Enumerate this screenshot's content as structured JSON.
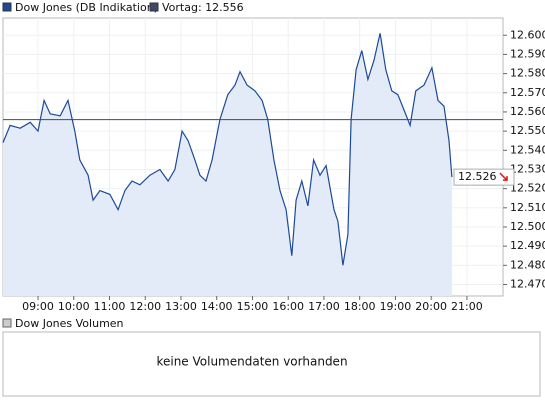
{
  "chart_data": {
    "type": "line",
    "series": [
      {
        "name": "Dow Jones (DB Indikation)",
        "color": "#1c4a96",
        "x": [
          8.02,
          8.22,
          8.5,
          8.78,
          9.0,
          9.17,
          9.34,
          9.62,
          9.84,
          10.03,
          10.17,
          10.4,
          10.54,
          10.73,
          11.01,
          11.24,
          11.43,
          11.63,
          11.85,
          12.13,
          12.41,
          12.64,
          12.83,
          13.03,
          13.2,
          13.39,
          13.53,
          13.7,
          13.87,
          14.09,
          14.31,
          14.51,
          14.65,
          14.85,
          15.07,
          15.27,
          15.43,
          15.6,
          15.77,
          15.94,
          16.1,
          16.22,
          16.38,
          16.55,
          16.71,
          16.89,
          17.06,
          17.28,
          17.39,
          17.53,
          17.67,
          17.76,
          17.9,
          18.06,
          18.23,
          18.4,
          18.57,
          18.73,
          18.9,
          19.07,
          19.24,
          19.41,
          19.57,
          19.8,
          20.02,
          20.19,
          20.36,
          20.5,
          20.58
        ],
        "values": [
          12544,
          12553,
          12551.5,
          12554.6,
          12550,
          12566,
          12559,
          12558,
          12566,
          12550,
          12535,
          12527,
          12514,
          12519,
          12517,
          12509,
          12519,
          12524,
          12522,
          12527,
          12530,
          12524,
          12530,
          12550,
          12545,
          12535,
          12527,
          12524,
          12535,
          12556,
          12569,
          12574,
          12581,
          12574,
          12571,
          12566,
          12556,
          12535,
          12519,
          12509,
          12485,
          12514,
          12524,
          12511,
          12535,
          12527,
          12532,
          12509,
          12503,
          12480,
          12496,
          12556,
          12582,
          12592,
          12577,
          12587,
          12601,
          12582,
          12571,
          12569,
          12561,
          12553,
          12571,
          12574,
          12583,
          12566,
          12563,
          12545,
          12526
        ]
      }
    ],
    "fill": "#e4ebf8",
    "reference": {
      "label": "Vortag: 12.556",
      "value": 12556,
      "color": "#3c4a68"
    },
    "current": {
      "value": 12526,
      "label": "12.526"
    },
    "xlim": [
      8.02,
      22.01
    ],
    "ylim": [
      12464,
      12609
    ],
    "xticks": [
      {
        "value": 9,
        "label": "09:00"
      },
      {
        "value": 10,
        "label": "10:00"
      },
      {
        "value": 11,
        "label": "11:00"
      },
      {
        "value": 12,
        "label": "12:00"
      },
      {
        "value": 13,
        "label": "13:00"
      },
      {
        "value": 14,
        "label": "14:00"
      },
      {
        "value": 15,
        "label": "15:00"
      },
      {
        "value": 16,
        "label": "16:00"
      },
      {
        "value": 17,
        "label": "17:00"
      },
      {
        "value": 18,
        "label": "18:00"
      },
      {
        "value": 19,
        "label": "19:00"
      },
      {
        "value": 20,
        "label": "20:00"
      },
      {
        "value": 21,
        "label": "21:00"
      }
    ],
    "yticks": [
      {
        "value": 12470,
        "label": "12.470"
      },
      {
        "value": 12480,
        "label": "12.480"
      },
      {
        "value": 12490,
        "label": "12.490"
      },
      {
        "value": 12500,
        "label": "12.500"
      },
      {
        "value": 12510,
        "label": "12.510"
      },
      {
        "value": 12520,
        "label": "12.520"
      },
      {
        "value": 12530,
        "label": "12.530"
      },
      {
        "value": 12540,
        "label": "12.540"
      },
      {
        "value": 12550,
        "label": "12.550"
      },
      {
        "value": 12560,
        "label": "12.560"
      },
      {
        "value": 12570,
        "label": "12.570"
      },
      {
        "value": 12580,
        "label": "12.580"
      },
      {
        "value": 12590,
        "label": "12.590"
      },
      {
        "value": 12600,
        "label": "12.600"
      }
    ],
    "grid": true
  },
  "volume_panel": {
    "legend": "Dow Jones Volumen",
    "message": "keine Volumendaten vorhanden"
  }
}
